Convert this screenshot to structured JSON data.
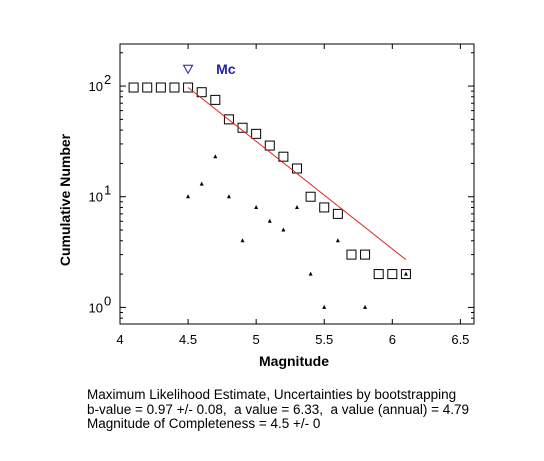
{
  "chart_data": {
    "type": "scatter",
    "xlabel": "Magnitude",
    "ylabel": "Cumulative Number",
    "xlim": [
      4,
      6.6
    ],
    "ylim_log10": [
      -0.15,
      2.38
    ],
    "yscale": "log",
    "x_ticks": [
      "4",
      "4.5",
      "5",
      "5.5",
      "6",
      "6.5"
    ],
    "y_ticks": [
      {
        "base": "10",
        "exp": "0",
        "log10": 0
      },
      {
        "base": "10",
        "exp": "1",
        "log10": 1
      },
      {
        "base": "10",
        "exp": "2",
        "log10": 2
      }
    ],
    "series": [
      {
        "marker": "open-square",
        "x": [
          4.1,
          4.2,
          4.3,
          4.4,
          4.5,
          4.6,
          4.7,
          4.8,
          4.9,
          5.0,
          5.1,
          5.2,
          5.3,
          5.4,
          5.5,
          5.6,
          5.7,
          5.8,
          5.9,
          6.0,
          6.1
        ],
        "y": [
          97,
          97,
          97,
          97,
          97,
          88,
          75,
          50,
          42,
          37,
          29,
          23,
          18,
          10,
          8,
          7,
          3,
          3,
          2,
          2,
          2
        ]
      },
      {
        "marker": "small-triangle",
        "x": [
          4.5,
          4.6,
          4.7,
          4.8,
          4.9,
          5.0,
          5.1,
          5.2,
          5.3,
          5.4,
          5.5,
          5.6,
          5.8,
          6.1
        ],
        "y": [
          10,
          13,
          23,
          10,
          4,
          8,
          6,
          5,
          8,
          2,
          1,
          4,
          1,
          2
        ]
      },
      {
        "marker": "line",
        "color": "#e02020",
        "x": [
          4.5,
          6.1
        ],
        "y": [
          97,
          2.7
        ]
      }
    ],
    "mc_marker": {
      "label": "Mc",
      "x": 4.5,
      "y": 142,
      "color": "#1f1fa8"
    },
    "grid": false
  },
  "caption": {
    "line1": "Maximum Likelihood Estimate, Uncertainties by bootstrapping",
    "line2": "b-value = 0.97 +/- 0.08,  a value = 6.33,  a value (annual) = 4.79",
    "line3": "Magnitude of Completeness = 4.5 +/- 0"
  }
}
